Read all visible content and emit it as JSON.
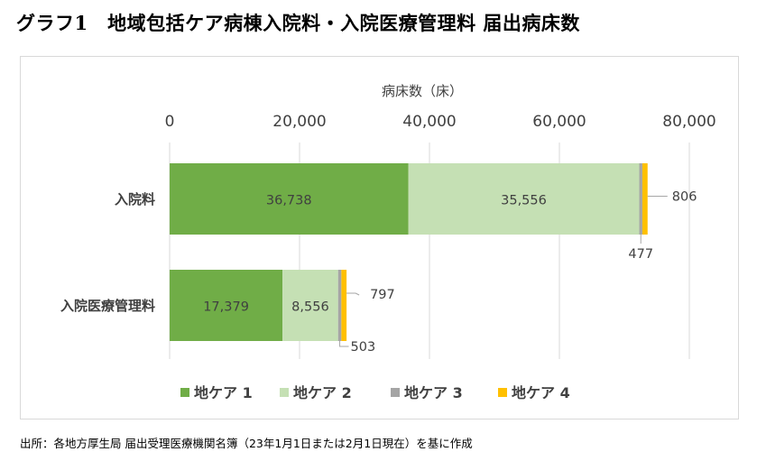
{
  "page_title": "グラフ1　地域包括ケア病棟入院料・入院医療管理料 届出病床数",
  "source_note": "出所：各地方厚生局 届出受理医療機関名簿（23年1月1日または2月1日現在）を基に作成",
  "colors": {
    "chiiki_care_1": "#70ad47",
    "chiiki_care_2": "#c5e0b4",
    "chiiki_care_3": "#a5a5a5",
    "chiiki_care_4": "#ffc000"
  },
  "chart_data": {
    "type": "bar",
    "orientation": "horizontal",
    "stacked": true,
    "axis_label": "病床数（床）",
    "axis_position": "top",
    "xlim": [
      0,
      80000
    ],
    "ticks": [
      0,
      20000,
      40000,
      60000,
      80000
    ],
    "tick_labels": [
      "0",
      "20,000",
      "40,000",
      "60,000",
      "80,000"
    ],
    "grid": true,
    "legend_position": "bottom",
    "categories": [
      "入院料",
      "入院医療管理料"
    ],
    "series": [
      {
        "name": "地ケア 1",
        "values": [
          36738,
          17379
        ],
        "labels": [
          "36,738",
          "17,379"
        ]
      },
      {
        "name": "地ケア 2",
        "values": [
          35556,
          8556
        ],
        "labels": [
          "35,556",
          "8,556"
        ]
      },
      {
        "name": "地ケア 3",
        "values": [
          477,
          503
        ],
        "labels": [
          "477",
          "503"
        ]
      },
      {
        "name": "地ケア 4",
        "values": [
          806,
          797
        ],
        "labels": [
          "806",
          "797"
        ]
      }
    ]
  }
}
